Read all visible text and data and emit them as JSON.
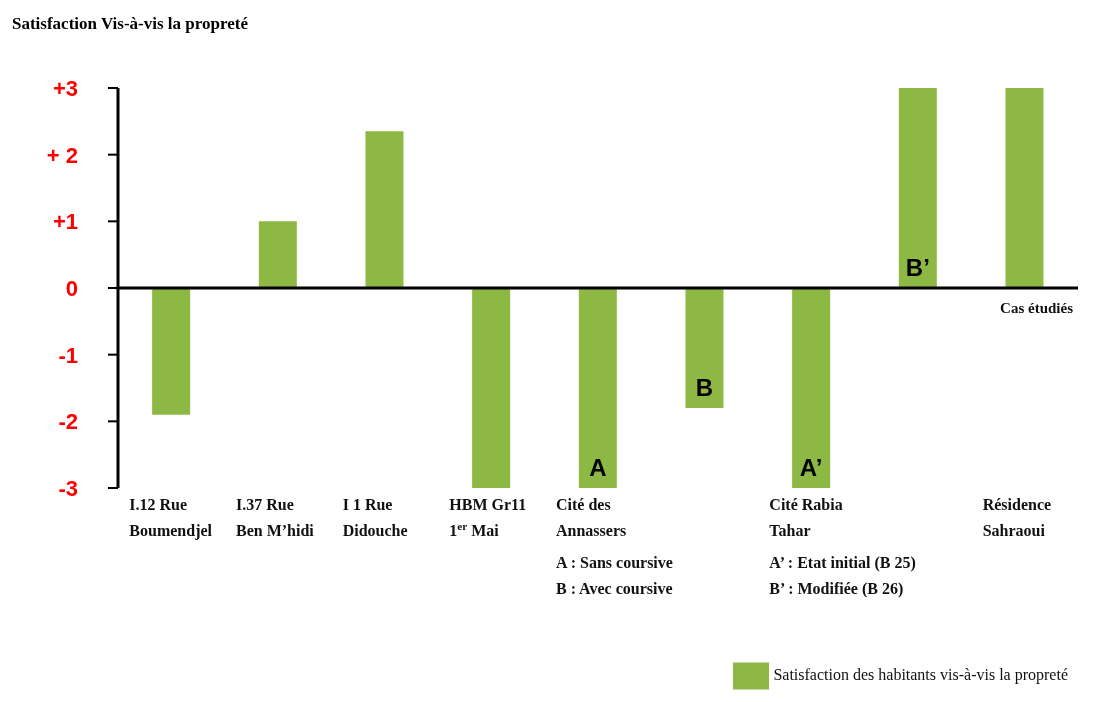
{
  "chart_data": {
    "type": "bar",
    "ylabel": "Satisfaction Vis-à-vis la propreté",
    "xlabel": "Cas étudiés",
    "categories": [
      "I.12 Rue Boumendjel",
      "I.37 Rue Ben M’hidi",
      "I 1 Rue Didouche",
      "HBM Gr11 1$^{er}$ Mai",
      "Cité des Annassers",
      null,
      "Cité Rabia Tahar",
      null,
      "Résidence Sahraoui"
    ],
    "series": [
      {
        "name": "Satisfaction des habitants vis-à-vis la propreté",
        "color": "#8db843",
        "values": [
          -1.9,
          1,
          2.35,
          -3,
          -3,
          -1.8,
          -3,
          3,
          3
        ],
        "value_labels": [
          null,
          null,
          null,
          null,
          "A",
          "B",
          "A’",
          "B’",
          null
        ]
      }
    ],
    "ylim": [
      -3,
      3
    ],
    "yticks": [
      {
        "value": 3,
        "label": "+3"
      },
      {
        "value": 2,
        "label": "+ 2"
      },
      {
        "value": 1,
        "label": "+1"
      },
      0,
      -1,
      -2,
      -3
    ],
    "annotations": [
      "A : Sans coursive",
      "B : Avec coursive",
      "A’ : Etat initial  (B 25)",
      "B’ : Modifiée (B 26)"
    ],
    "legend": "bottom right"
  }
}
